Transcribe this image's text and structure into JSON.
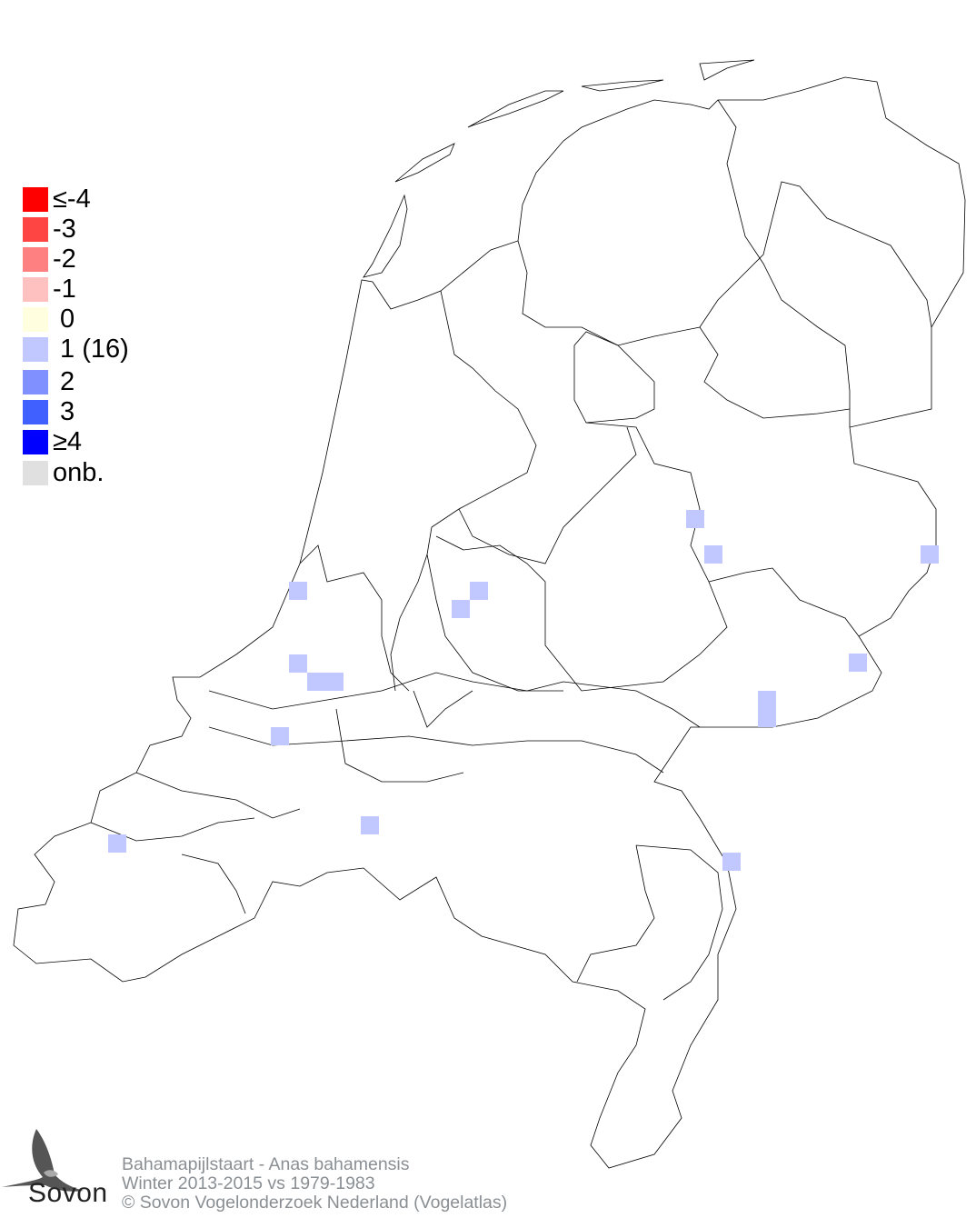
{
  "legend": {
    "items": [
      {
        "label": "≤-4",
        "color": "#ff0000"
      },
      {
        "label": "-3",
        "color": "#ff4444"
      },
      {
        "label": "-2",
        "color": "#ff8080"
      },
      {
        "label": "-1",
        "color": "#ffc0c0"
      },
      {
        "label": " 0",
        "color": "#ffffe0"
      },
      {
        "label": " 1 (16)",
        "color": "#c0c8ff"
      },
      {
        "label": " 2",
        "color": "#8090ff"
      },
      {
        "label": " 3",
        "color": "#4060ff"
      },
      {
        "label": "≥4",
        "color": "#0000ff"
      },
      {
        "label": "onb.",
        "color": "#e0e0e0"
      }
    ]
  },
  "map": {
    "cell_value_shown": 1,
    "cell_color": "#c0c8ff",
    "cell_count": 16
  },
  "footer": {
    "species": "Bahamapijlstaart - Anas bahamensis",
    "period": "Winter 2013-2015 vs 1979-1983",
    "copyright": "© Sovon Vogelonderzoek Nederland (Vogelatlas)"
  },
  "logo": {
    "text": "Sovon"
  }
}
